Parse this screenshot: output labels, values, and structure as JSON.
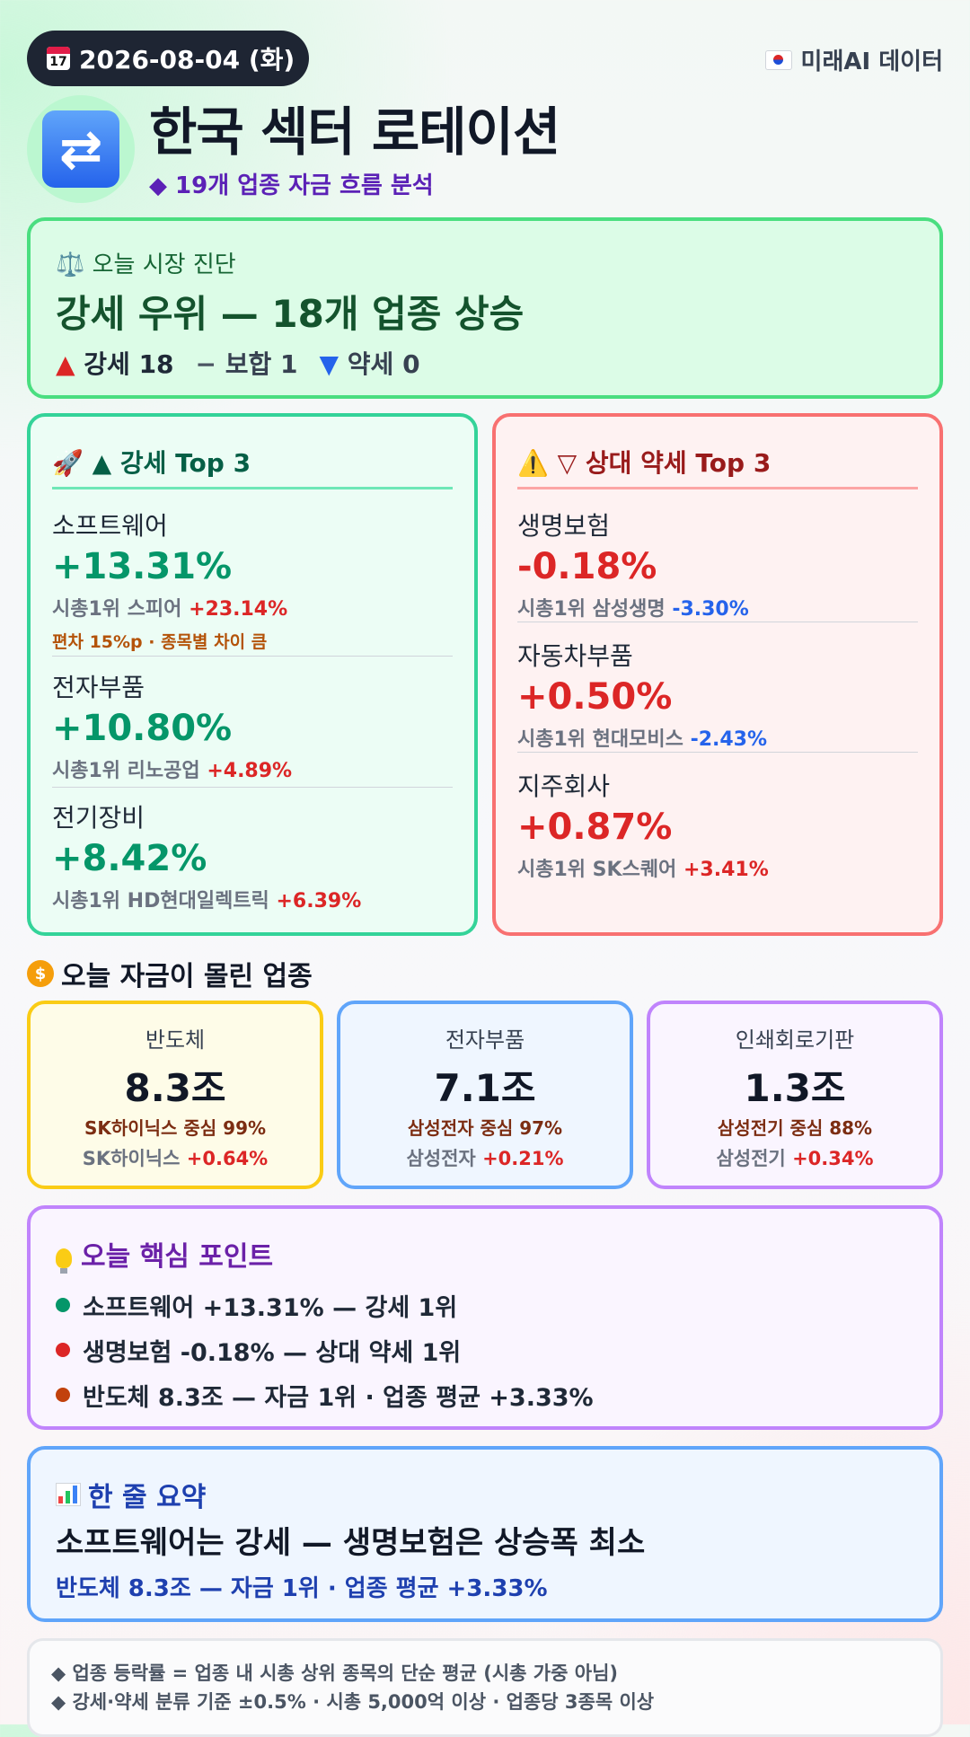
{
  "header": {
    "date": "2026-08-04 (화)",
    "calendar_icon_text": "17",
    "brand": "미래AI 데이터",
    "logo_glyph": "⇄",
    "title": "한국 섹터 로테이션",
    "subtitle": "◆ 19개 업종 자금 흐름 분석"
  },
  "diagnosis": {
    "label": "⚖️ 오늘 시장 진단",
    "headline": "강세 우위 — 18개 업종 상승",
    "strong_label": "▲ 강세 18",
    "neutral_label": "− 보합 1",
    "weak_label": "▼ 약세 0"
  },
  "strong_top3": {
    "heading": "🚀 ▲ 강세 Top 3",
    "items": [
      {
        "name": "소프트웨어",
        "change": "+13.31%",
        "lead_prefix": "시총1위 스피어",
        "lead_change": "+23.14%",
        "note": "편차 15%p · 종목별 차이 큼"
      },
      {
        "name": "전자부품",
        "change": "+10.80%",
        "lead_prefix": "시총1위 리노공업",
        "lead_change": "+4.89%"
      },
      {
        "name": "전기장비",
        "change": "+8.42%",
        "lead_prefix": "시총1위 HD현대일렉트릭",
        "lead_change": "+6.39%"
      }
    ]
  },
  "weak_top3": {
    "heading": "⚠️ ▽ 상대 약세 Top 3",
    "items": [
      {
        "name": "생명보험",
        "change": "-0.18%",
        "lead_prefix": "시총1위 삼성생명",
        "lead_change": "-3.30%"
      },
      {
        "name": "자동차부품",
        "change": "+0.50%",
        "lead_prefix": "시총1위 현대모비스",
        "lead_change": "-2.43%"
      },
      {
        "name": "지주회사",
        "change": "+0.87%",
        "lead_prefix": "시총1위 SK스퀘어",
        "lead_change": "+3.41%"
      }
    ]
  },
  "flow": {
    "title": "오늘 자금이 몰린 업종",
    "items": [
      {
        "name": "반도체",
        "amount": "8.3조",
        "concentration": "SK하이닉스 중심 99%",
        "lead_name": "SK하이닉스",
        "lead_change": "+0.64%"
      },
      {
        "name": "전자부품",
        "amount": "7.1조",
        "concentration": "삼성전자 중심 97%",
        "lead_name": "삼성전자",
        "lead_change": "+0.21%"
      },
      {
        "name": "인쇄회로기판",
        "amount": "1.3조",
        "concentration": "삼성전기 중심 88%",
        "lead_name": "삼성전기",
        "lead_change": "+0.34%"
      }
    ]
  },
  "key_points": {
    "heading": "오늘 핵심 포인트",
    "items": [
      {
        "text": "소프트웨어 +13.31% — 강세 1위",
        "color": "#059669"
      },
      {
        "text": "생명보험 -0.18% — 상대 약세 1위",
        "color": "#dc2626"
      },
      {
        "text": "반도체 8.3조 — 자금 1위 · 업종 평균 +3.33%",
        "color": "#c2410c"
      }
    ]
  },
  "summary": {
    "heading": "한 줄 요약",
    "headline": "소프트웨어는 강세 — 생명보험은 상승폭 최소",
    "sub": "반도체 8.3조 — 자금 1위 · 업종 평균 +3.33%"
  },
  "notes": [
    "◆ 업종 등락률 = 업종 내 시총 상위 종목의 단순 평균 (시총 가중 아님)",
    "◆ 강세·약세 분류 기준 ±0.5% · 시총 5,000억 이상 · 업종당 3종목 이상"
  ],
  "colors": {
    "up": "#059669",
    "down_red": "#dc2626",
    "down_blue": "#2563eb"
  }
}
